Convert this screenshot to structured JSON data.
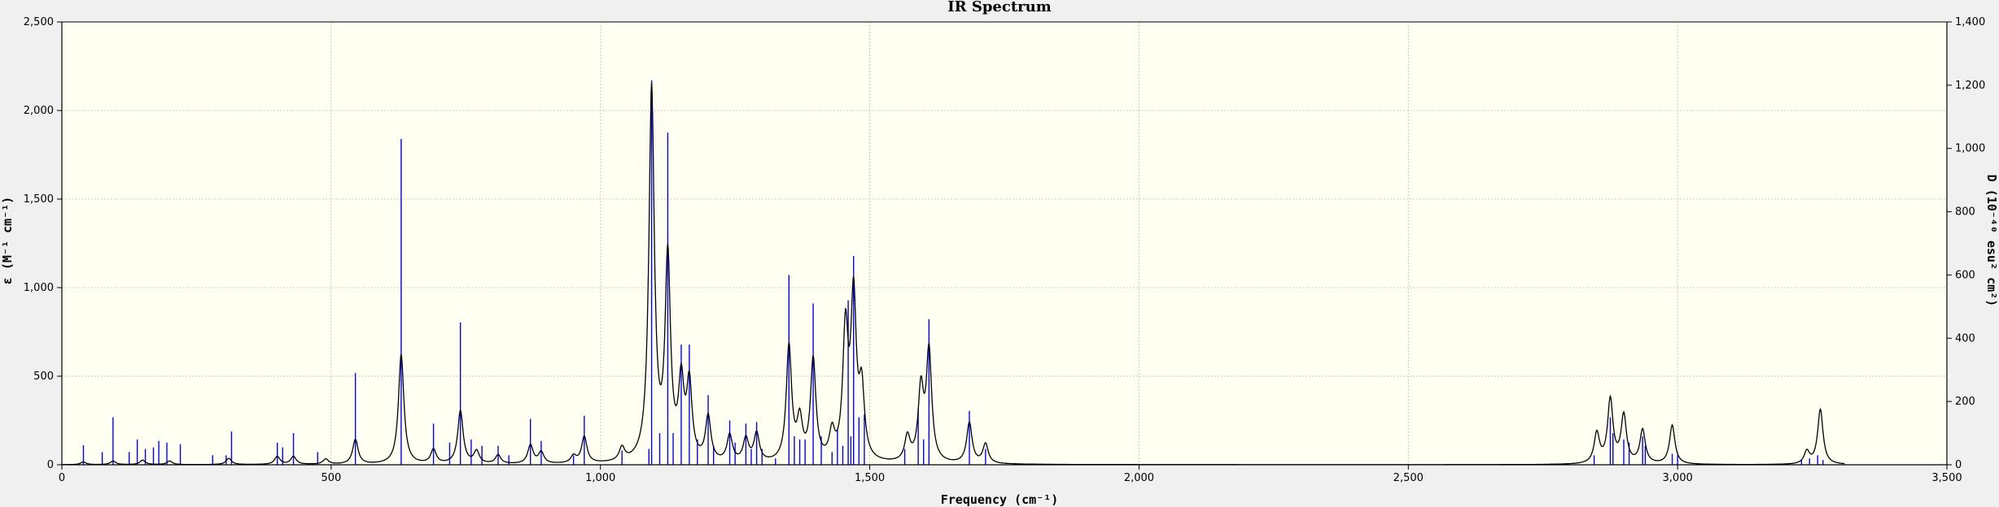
{
  "chart_data": {
    "type": "line",
    "title": "IR Spectrum",
    "xlabel": "Frequency (cm⁻¹)",
    "ylabel_left": "ε (M⁻¹ cm⁻¹)",
    "ylabel_right": "D (10⁻⁴⁰ esu² cm²)",
    "xlim": [
      0,
      3500
    ],
    "ylim_left": [
      0,
      2500
    ],
    "ylim_right": [
      0,
      1400
    ],
    "grid": true,
    "x_ticks": [
      "0",
      "500",
      "1,000",
      "1,500",
      "2,000",
      "2,500",
      "3,000",
      "3,500"
    ],
    "y_left_ticks": [
      "0",
      "500",
      "1,000",
      "1,500",
      "2,000",
      "2,500"
    ],
    "y_right_ticks": [
      "0",
      "200",
      "400",
      "600",
      "800",
      "1,000",
      "1,200",
      "1,400"
    ],
    "colors": {
      "spectrum": "#000000",
      "sticks": "#0000ff",
      "plot_bg": "#fffff2",
      "grid": "#c8c8c8"
    },
    "series": [
      {
        "role": "spectrum",
        "axis": "left",
        "peaks_x": [
          40,
          95,
          150,
          200,
          310,
          400,
          430,
          490,
          545,
          630,
          690,
          740,
          770,
          810,
          870,
          890,
          950,
          970,
          1040,
          1095,
          1125,
          1150,
          1165,
          1200,
          1240,
          1270,
          1290,
          1350,
          1370,
          1395,
          1430,
          1455,
          1470,
          1485,
          1570,
          1595,
          1610,
          1685,
          1715,
          2850,
          2875,
          2900,
          2935,
          2990,
          3240,
          3265
        ],
        "peaks_y": [
          15,
          20,
          25,
          20,
          35,
          45,
          45,
          30,
          140,
          620,
          80,
          300,
          70,
          50,
          105,
          65,
          40,
          150,
          75,
          2100,
          1130,
          420,
          420,
          250,
          150,
          130,
          160,
          650,
          220,
          570,
          150,
          720,
          900,
          380,
          140,
          400,
          620,
          230,
          110,
          170,
          360,
          270,
          190,
          220,
          70,
          310
        ]
      },
      {
        "role": "sticks",
        "axis": "right",
        "x": [
          40,
          75,
          95,
          125,
          140,
          155,
          170,
          180,
          195,
          220,
          280,
          305,
          315,
          400,
          410,
          430,
          475,
          545,
          630,
          690,
          720,
          740,
          760,
          780,
          810,
          830,
          870,
          890,
          950,
          970,
          1040,
          1090,
          1095,
          1110,
          1125,
          1135,
          1150,
          1165,
          1180,
          1200,
          1210,
          1240,
          1250,
          1270,
          1280,
          1290,
          1300,
          1325,
          1350,
          1360,
          1370,
          1380,
          1395,
          1410,
          1430,
          1440,
          1450,
          1460,
          1465,
          1470,
          1480,
          1490,
          1565,
          1590,
          1600,
          1610,
          1685,
          1715,
          2845,
          2875,
          2880,
          2900,
          2910,
          2935,
          2940,
          2990,
          3000,
          3230,
          3245,
          3260,
          3270
        ],
        "y": [
          62,
          40,
          150,
          40,
          80,
          50,
          55,
          75,
          70,
          65,
          30,
          30,
          105,
          70,
          55,
          100,
          40,
          290,
          1030,
          130,
          70,
          450,
          80,
          60,
          60,
          30,
          145,
          75,
          30,
          155,
          45,
          50,
          1215,
          100,
          1050,
          100,
          380,
          380,
          80,
          220,
          60,
          140,
          70,
          130,
          50,
          135,
          50,
          20,
          600,
          90,
          80,
          80,
          510,
          90,
          40,
          110,
          60,
          520,
          90,
          660,
          150,
          160,
          50,
          180,
          80,
          460,
          170,
          50,
          30,
          150,
          100,
          80,
          70,
          90,
          60,
          35,
          30,
          15,
          20,
          30,
          15
        ]
      }
    ]
  }
}
